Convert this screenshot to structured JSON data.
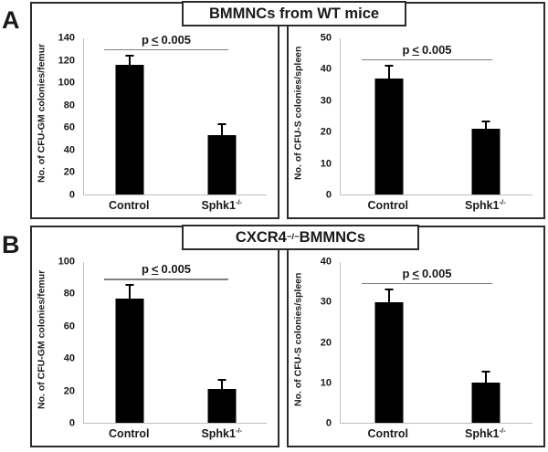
{
  "figure": {
    "background": "#ffffff",
    "box_border_color": "#2b2b2b",
    "bar_color": "#000000",
    "axis_color": "#bfbfbf",
    "sig_line_color": "#808080"
  },
  "panels": [
    {
      "letter": "A",
      "title": {
        "prefix": "BMMNCs from WT mice",
        "sup": "",
        "suffix": ""
      }
    },
    {
      "letter": "B",
      "title": {
        "prefix": "CXCR4",
        "sup": "−/−",
        "suffix": " BMMNCs"
      }
    }
  ],
  "chart_data": [
    {
      "type": "bar",
      "panel": "A",
      "position": "left",
      "ylabel": "No. of CFU-GM colonies/femur",
      "ylim": [
        0,
        140
      ],
      "ytick_step": 20,
      "categories": [
        "Control",
        "Sphk1-/-"
      ],
      "category_labels": [
        {
          "text": "Control",
          "sup": ""
        },
        {
          "text": "Sphk1",
          "sup": "-/-"
        }
      ],
      "values": [
        116,
        53
      ],
      "errors_plus": [
        8,
        9
      ],
      "significance": {
        "label": "p ≤ 0.005",
        "lhs": "p",
        "relation": "<",
        "rhs": "0.005"
      }
    },
    {
      "type": "bar",
      "panel": "A",
      "position": "right",
      "ylabel": "No. of CFU-S colonies/spleen",
      "ylim": [
        0,
        50
      ],
      "ytick_step": 10,
      "categories": [
        "Control",
        "Sphk1-/-"
      ],
      "category_labels": [
        {
          "text": "Control",
          "sup": ""
        },
        {
          "text": "Sphk1",
          "sup": "-/-"
        }
      ],
      "values": [
        37,
        21
      ],
      "errors_plus": [
        4,
        2
      ],
      "significance": {
        "label": "p ≤ 0.005",
        "lhs": "p",
        "relation": "<",
        "rhs": "0.005"
      }
    },
    {
      "type": "bar",
      "panel": "B",
      "position": "left",
      "ylabel": "No. of CFU-GM colonies/femur",
      "ylim": [
        0,
        100
      ],
      "ytick_step": 20,
      "categories": [
        "Control",
        "Sphk1-/-"
      ],
      "category_labels": [
        {
          "text": "Control",
          "sup": ""
        },
        {
          "text": "Sphk1",
          "sup": "-/-"
        }
      ],
      "values": [
        77,
        21
      ],
      "errors_plus": [
        8,
        5
      ],
      "significance": {
        "label": "p ≤ 0.005",
        "lhs": "p",
        "relation": "<",
        "rhs": "0.005"
      }
    },
    {
      "type": "bar",
      "panel": "B",
      "position": "right",
      "ylabel": "No. of CFU-S colonies/spleen",
      "ylim": [
        0,
        40
      ],
      "ytick_step": 10,
      "categories": [
        "Control",
        "Sphk1-/-"
      ],
      "category_labels": [
        {
          "text": "Control",
          "sup": ""
        },
        {
          "text": "Sphk1",
          "sup": "-/-"
        }
      ],
      "values": [
        30,
        10
      ],
      "errors_plus": [
        3,
        2.5
      ],
      "significance": {
        "label": "p ≤ 0.005",
        "lhs": "p",
        "relation": "<",
        "rhs": "0.005"
      }
    }
  ]
}
